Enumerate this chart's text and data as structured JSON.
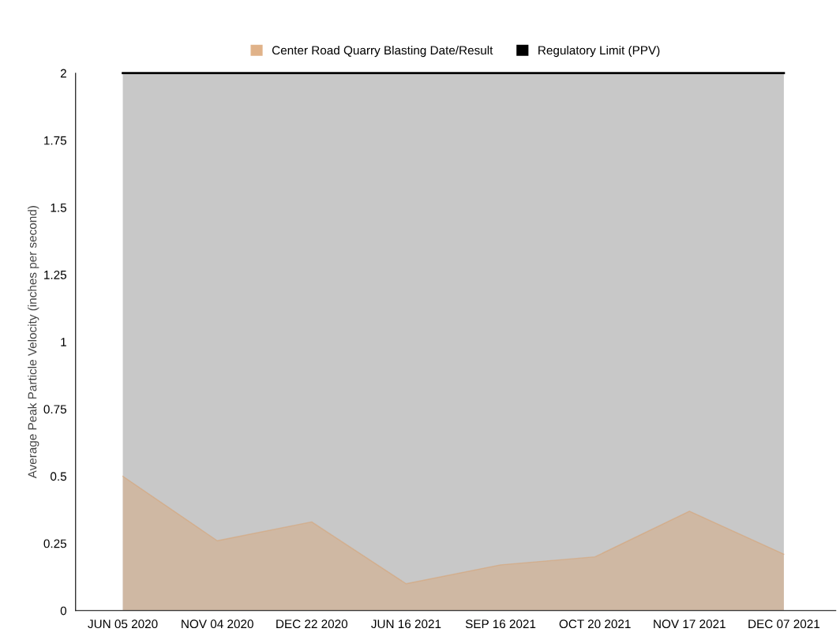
{
  "chart_data": {
    "type": "area",
    "ylabel": "Average Peak Particle Velocity (inches per second)",
    "categories": [
      "JUN 05 2020",
      "NOV 04 2020",
      "DEC 22 2020",
      "JUN 16 2021",
      "SEP 16 2021",
      "OCT 20 2021",
      "NOV 17 2021",
      "DEC 07 2021"
    ],
    "series": [
      {
        "name": "Center Road Quarry Blasting Date/Result",
        "color": "#d9a06c",
        "values": [
          0.5,
          0.26,
          0.33,
          0.1,
          0.17,
          0.2,
          0.37,
          0.21
        ]
      },
      {
        "name": "Regulatory Limit (PPV)",
        "type": "line",
        "color": "#000000",
        "values": [
          2,
          2,
          2,
          2,
          2,
          2,
          2,
          2
        ]
      }
    ],
    "bands": [
      {
        "axis": "y",
        "from": 0,
        "to": 2,
        "color": "#c8c8c8"
      }
    ],
    "ylim": [
      0,
      2
    ],
    "yticks": [
      0,
      0.25,
      0.5,
      0.75,
      1,
      1.25,
      1.5,
      1.75,
      2
    ],
    "grid": false,
    "legend": "top",
    "marker": "none"
  }
}
